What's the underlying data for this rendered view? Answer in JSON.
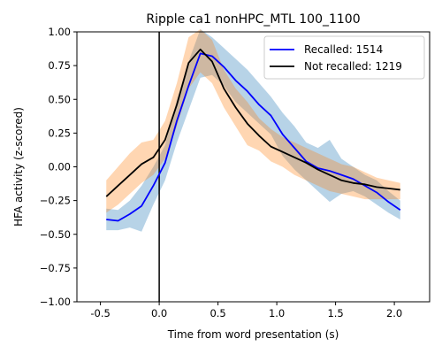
{
  "chart_data": {
    "type": "line",
    "title": "Ripple ca1 nonHPC_MTL 100_1100",
    "xlabel": "Time from word presentation (s)",
    "ylabel": "HFA activity (z-scored)",
    "xlim": [
      -0.7,
      2.3
    ],
    "ylim": [
      -1.0,
      1.0
    ],
    "x_ticks": [
      -0.5,
      0.0,
      0.5,
      1.0,
      1.5,
      2.0
    ],
    "x_tick_labels": [
      "-0.5",
      "0.0",
      "0.5",
      "1.0",
      "1.5",
      "2.0"
    ],
    "y_ticks": [
      -1.0,
      -0.75,
      -0.5,
      -0.25,
      0.0,
      0.25,
      0.5,
      0.75,
      1.0
    ],
    "y_tick_labels": [
      "−1.00",
      "−0.75",
      "−0.50",
      "−0.25",
      "0.00",
      "0.25",
      "0.50",
      "0.75",
      "1.00"
    ],
    "vline_x": 0.0,
    "legend_position": "top-right",
    "x": [
      -0.45,
      -0.35,
      -0.25,
      -0.15,
      -0.05,
      0.05,
      0.15,
      0.25,
      0.35,
      0.45,
      0.55,
      0.65,
      0.75,
      0.85,
      0.95,
      1.05,
      1.15,
      1.25,
      1.35,
      1.45,
      1.55,
      1.65,
      1.75,
      1.85,
      1.95,
      2.05
    ],
    "series": [
      {
        "name": "Recalled: 1514",
        "color": "#0000ff",
        "band_color": "#1f77b4",
        "values": [
          -0.39,
          -0.4,
          -0.35,
          -0.29,
          -0.14,
          0.03,
          0.34,
          0.6,
          0.84,
          0.82,
          0.74,
          0.64,
          0.56,
          0.46,
          0.38,
          0.24,
          0.14,
          0.04,
          -0.01,
          -0.03,
          -0.06,
          -0.09,
          -0.14,
          -0.19,
          -0.26,
          -0.32
        ],
        "lower": [
          -0.47,
          -0.47,
          -0.45,
          -0.48,
          -0.28,
          -0.1,
          0.18,
          0.42,
          0.66,
          0.68,
          0.6,
          0.48,
          0.4,
          0.32,
          0.24,
          0.08,
          -0.02,
          -0.1,
          -0.18,
          -0.26,
          -0.2,
          -0.18,
          -0.22,
          -0.28,
          -0.34,
          -0.39
        ],
        "upper": [
          -0.31,
          -0.32,
          -0.25,
          -0.14,
          0.0,
          0.16,
          0.5,
          0.78,
          1.02,
          0.96,
          0.88,
          0.8,
          0.72,
          0.62,
          0.52,
          0.4,
          0.3,
          0.18,
          0.14,
          0.2,
          0.06,
          0.0,
          -0.06,
          -0.1,
          -0.18,
          -0.25
        ]
      },
      {
        "name": "Not recalled: 1219",
        "color": "#000000",
        "band_color": "#ff7f0e",
        "values": [
          -0.22,
          -0.14,
          -0.06,
          0.02,
          0.07,
          0.2,
          0.46,
          0.77,
          0.87,
          0.78,
          0.58,
          0.44,
          0.32,
          0.23,
          0.15,
          0.11,
          0.07,
          0.03,
          -0.02,
          -0.06,
          -0.1,
          -0.12,
          -0.13,
          -0.15,
          -0.16,
          -0.17
        ],
        "lower": [
          -0.34,
          -0.28,
          -0.2,
          -0.12,
          -0.06,
          0.06,
          0.3,
          0.58,
          0.7,
          0.62,
          0.44,
          0.3,
          0.16,
          0.12,
          0.04,
          0.0,
          -0.06,
          -0.1,
          -0.14,
          -0.18,
          -0.2,
          -0.22,
          -0.24,
          -0.24,
          -0.24,
          -0.24
        ],
        "upper": [
          -0.1,
          0.0,
          0.1,
          0.18,
          0.2,
          0.34,
          0.62,
          0.96,
          1.02,
          0.94,
          0.72,
          0.58,
          0.48,
          0.36,
          0.28,
          0.22,
          0.18,
          0.14,
          0.1,
          0.06,
          0.02,
          0.0,
          -0.04,
          -0.08,
          -0.1,
          -0.12
        ]
      }
    ]
  }
}
